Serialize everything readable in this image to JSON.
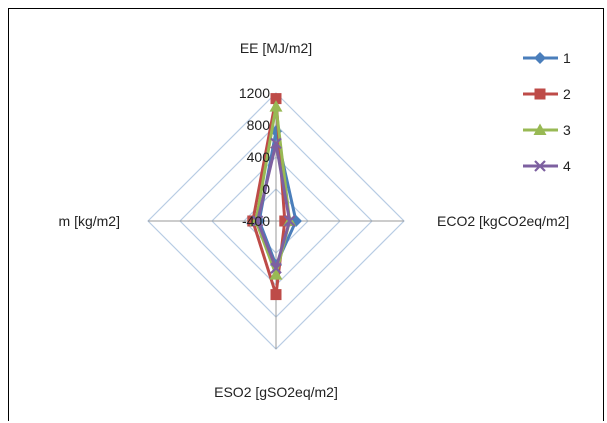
{
  "chart_data": {
    "type": "radar",
    "axes": [
      "EE [MJ/m2]",
      "ECO2 [kgCO2eq/m2]",
      "ESO2  [gSO2eq/m2]",
      "m  [kg/m2]"
    ],
    "ticks": [
      "1200",
      "800",
      "400",
      "0",
      "-400"
    ],
    "rlim": [
      -400,
      1200
    ],
    "grid": true,
    "legend": "right",
    "series": [
      {
        "name": "1",
        "color": "#4a7ebb",
        "marker": "diamond",
        "values": [
          720,
          -150,
          150,
          -190
        ]
      },
      {
        "name": "2",
        "color": "#be4b48",
        "marker": "square",
        "values": [
          1130,
          -290,
          520,
          -110
        ]
      },
      {
        "name": "3",
        "color": "#98b954",
        "marker": "triangle",
        "values": [
          1030,
          -230,
          270,
          -150
        ]
      },
      {
        "name": "4",
        "color": "#7d60a0",
        "marker": "x",
        "values": [
          570,
          -230,
          190,
          -170
        ]
      }
    ]
  }
}
